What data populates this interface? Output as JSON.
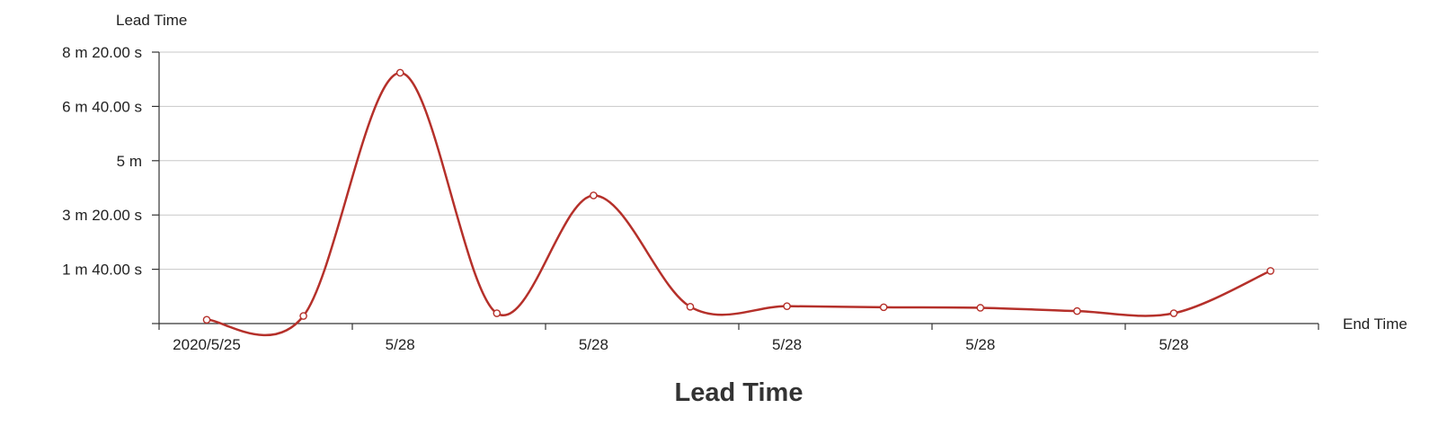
{
  "chart_data": {
    "type": "line",
    "title": "Lead Time",
    "xlabel": "End Time",
    "ylabel": "Lead Time",
    "ylim": [
      0,
      500
    ],
    "y_ticks": [
      {
        "value": 100,
        "label": "1 m 40.00 s"
      },
      {
        "value": 200,
        "label": "3 m 20.00 s"
      },
      {
        "value": 300,
        "label": "5 m"
      },
      {
        "value": 400,
        "label": "6 m 40.00 s"
      },
      {
        "value": 500,
        "label": "8 m 20.00 s"
      }
    ],
    "x_tick_labels": [
      "2020/5/25",
      "5/28",
      "5/28",
      "5/28",
      "5/28",
      "5/28"
    ],
    "grid": true,
    "series": [
      {
        "color": "#b5302a",
        "values": [
          7,
          14,
          462,
          19,
          236,
          31,
          32,
          30,
          29,
          23,
          19,
          97
        ]
      }
    ]
  }
}
